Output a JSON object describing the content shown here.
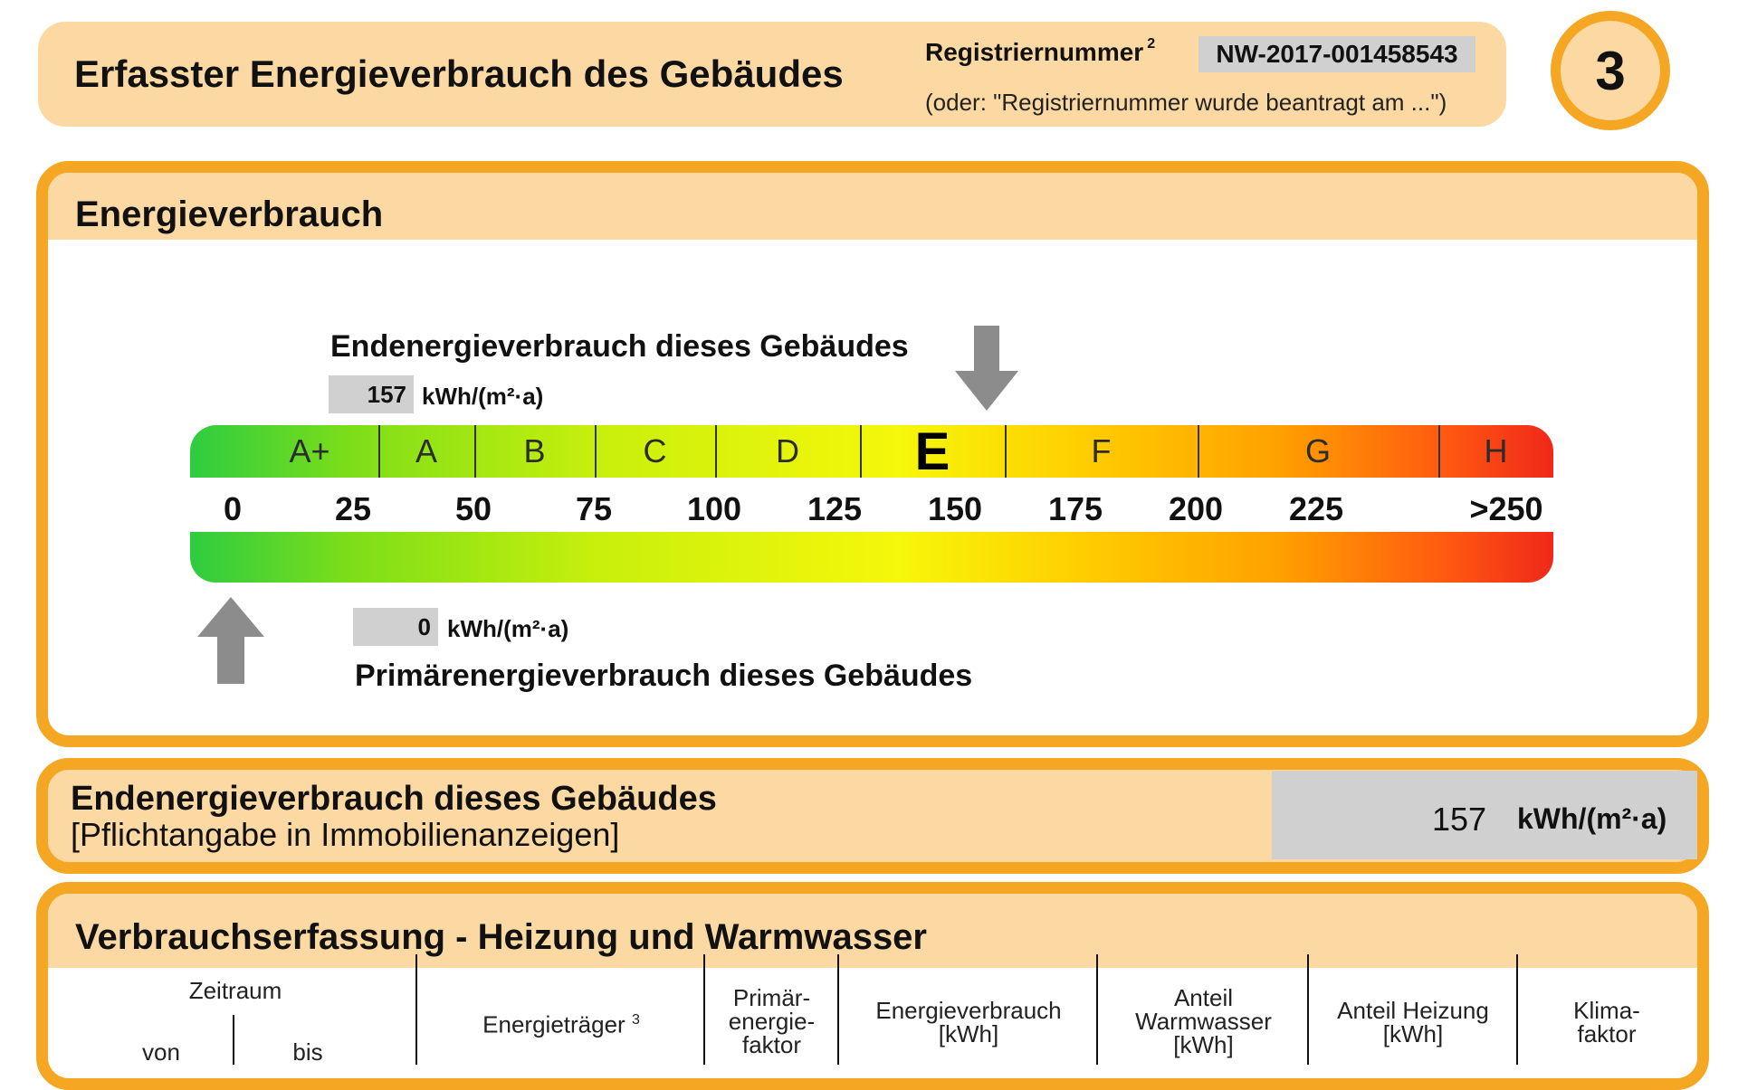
{
  "header": {
    "title": "Erfasster Energieverbrauch des Gebäudes",
    "registration_label": "Registriernummer",
    "registration_footnote": "2",
    "registration_number": "NW-2017-001458543",
    "registration_note": "(oder: \"Registriernummer wurde beantragt am ...\")",
    "page_number": "3"
  },
  "energy_consumption": {
    "title": "Energieverbrauch",
    "final_energy_label": "Endenergieverbrauch dieses Gebäudes",
    "final_energy_value": "157",
    "final_energy_unit": "kWh/(m²·a)",
    "primary_energy_label": "Primärenergieverbrauch dieses Gebäudes",
    "primary_energy_value": "0",
    "primary_energy_unit": "kWh/(m²·a)",
    "current_class": "E",
    "classes": [
      "A+",
      "A",
      "B",
      "C",
      "D",
      "E",
      "F",
      "G",
      "H"
    ],
    "ticks": [
      "0",
      "25",
      "50",
      "75",
      "100",
      "125",
      "150",
      "175",
      "200",
      "225",
      ">250"
    ],
    "colors": {
      "accent": "#f5a623",
      "light": "#fcd9a2",
      "grey_box": "#d0d0d0",
      "arrow": "#8c8c8c"
    }
  },
  "final_energy": {
    "label": "Endenergieverbrauch dieses Gebäudes",
    "note": "[Pflichtangabe in Immobilienanzeigen]",
    "value": "157",
    "unit": "kWh/(m²·a)"
  },
  "consumption_recording": {
    "title": "Verbrauchserfassung - Heizung und Warmwasser",
    "columns": {
      "period": "Zeitraum",
      "from": "von",
      "to": "bis",
      "carrier": "Energieträger",
      "carrier_footnote": "3",
      "primary_factor": "Primär-\nenergie-\nfaktor",
      "consumption": "Energieverbrauch\n[kWh]",
      "hot_water_share": "Anteil\nWarmwasser\n[kWh]",
      "heating_share": "Anteil Heizung\n[kWh]",
      "climate_factor": "Klima-\nfaktor"
    }
  }
}
